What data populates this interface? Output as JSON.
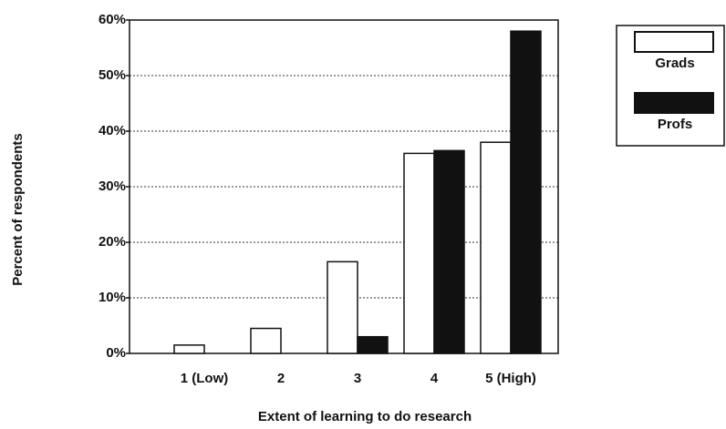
{
  "chart_data": {
    "type": "bar",
    "xlabel": "Extent of learning to do research",
    "ylabel": "Percent of respondents",
    "categories": [
      "1 (Low)",
      "2",
      "3",
      "4",
      "5 (High)"
    ],
    "series": [
      {
        "name": "Grads",
        "color": "#ffffff",
        "values": [
          1.5,
          4.5,
          16.5,
          36,
          38
        ]
      },
      {
        "name": "Profs",
        "color": "#111111",
        "values": [
          0,
          0,
          3,
          36.5,
          58
        ]
      }
    ],
    "ylim": [
      0,
      60
    ],
    "yticks": [
      {
        "value": 0,
        "label": "0%"
      },
      {
        "value": 10,
        "label": "10%"
      },
      {
        "value": 20,
        "label": "20%"
      },
      {
        "value": 30,
        "label": "30%"
      },
      {
        "value": 40,
        "label": "40%"
      },
      {
        "value": 50,
        "label": "50%"
      },
      {
        "value": 60,
        "label": "60%"
      }
    ],
    "grid": true,
    "legend": "right"
  }
}
